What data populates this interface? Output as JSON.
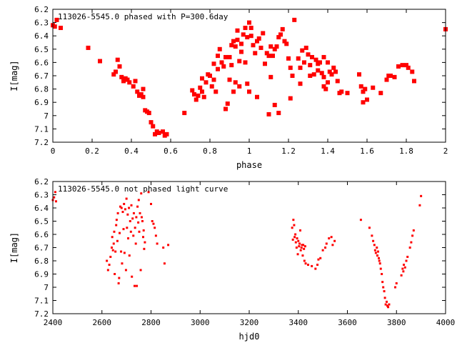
{
  "chart_data": [
    {
      "type": "scatter",
      "title": "113026-5545.0 phased with P=300.6day",
      "xlabel": "phase",
      "ylabel": "I[mag]",
      "xlim": [
        0,
        2
      ],
      "ylim": [
        7.2,
        6.2
      ],
      "y_inverted": true,
      "x_ticks": [
        0,
        0.2,
        0.4,
        0.6,
        0.8,
        1,
        1.2,
        1.4,
        1.6,
        1.8,
        2
      ],
      "x_tick_labels": [
        "0",
        "0.2",
        "0.4",
        "0.6",
        "0.8",
        "1",
        "1.2",
        "1.4",
        "1.6",
        "1.8",
        "2"
      ],
      "y_ticks": [
        6.2,
        6.3,
        6.4,
        6.5,
        6.6,
        6.7,
        6.8,
        6.9,
        7.0,
        7.1,
        7.2
      ],
      "y_tick_labels": [
        "6.2",
        "6.3",
        "6.4",
        "6.5",
        "6.6",
        "6.7",
        "6.8",
        "6.9",
        "7",
        "7.1",
        "7.2"
      ],
      "grid": false,
      "marker_color": "#ff0000",
      "points": [
        [
          0.0,
          6.32
        ],
        [
          0.01,
          6.33
        ],
        [
          0.02,
          6.28
        ],
        [
          0.04,
          6.34
        ],
        [
          0.18,
          6.49
        ],
        [
          0.24,
          6.59
        ],
        [
          0.31,
          6.69
        ],
        [
          0.32,
          6.67
        ],
        [
          0.33,
          6.58
        ],
        [
          0.34,
          6.63
        ],
        [
          0.35,
          6.71
        ],
        [
          0.36,
          6.74
        ],
        [
          0.37,
          6.72
        ],
        [
          0.38,
          6.73
        ],
        [
          0.39,
          6.75
        ],
        [
          0.41,
          6.78
        ],
        [
          0.42,
          6.74
        ],
        [
          0.43,
          6.82
        ],
        [
          0.44,
          6.85
        ],
        [
          0.45,
          6.84
        ],
        [
          0.46,
          6.8
        ],
        [
          0.46,
          6.86
        ],
        [
          0.47,
          6.96
        ],
        [
          0.48,
          6.97
        ],
        [
          0.49,
          6.98
        ],
        [
          0.5,
          7.05
        ],
        [
          0.51,
          7.08
        ],
        [
          0.52,
          7.14
        ],
        [
          0.53,
          7.12
        ],
        [
          0.54,
          7.13
        ],
        [
          0.56,
          7.12
        ],
        [
          0.57,
          7.15
        ],
        [
          0.58,
          7.14
        ],
        [
          0.67,
          6.98
        ],
        [
          0.71,
          6.81
        ],
        [
          0.72,
          6.84
        ],
        [
          0.73,
          6.88
        ],
        [
          0.74,
          6.85
        ],
        [
          0.75,
          6.79
        ],
        [
          0.76,
          6.82
        ],
        [
          0.76,
          6.72
        ],
        [
          0.77,
          6.86
        ],
        [
          0.78,
          6.75
        ],
        [
          0.79,
          6.69
        ],
        [
          0.8,
          6.7
        ],
        [
          0.81,
          6.78
        ],
        [
          0.82,
          6.73
        ],
        [
          0.82,
          6.61
        ],
        [
          0.83,
          6.82
        ],
        [
          0.84,
          6.55
        ],
        [
          0.84,
          6.65
        ],
        [
          0.85,
          6.5
        ],
        [
          0.86,
          6.6
        ],
        [
          0.87,
          6.63
        ],
        [
          0.88,
          6.56
        ],
        [
          0.88,
          6.95
        ],
        [
          0.89,
          6.91
        ],
        [
          0.9,
          6.73
        ],
        [
          0.9,
          6.56
        ],
        [
          0.91,
          6.62
        ],
        [
          0.91,
          6.47
        ],
        [
          0.92,
          6.44
        ],
        [
          0.92,
          6.82
        ],
        [
          0.93,
          6.75
        ],
        [
          0.93,
          6.48
        ],
        [
          0.94,
          6.43
        ],
        [
          0.94,
          6.36
        ],
        [
          0.95,
          6.59
        ],
        [
          0.95,
          6.78
        ],
        [
          0.96,
          6.46
        ],
        [
          0.96,
          6.52
        ],
        [
          0.97,
          6.39
        ],
        [
          0.98,
          6.34
        ],
        [
          0.98,
          6.6
        ],
        [
          0.99,
          6.41
        ],
        [
          0.99,
          6.76
        ],
        [
          1.0,
          6.3
        ],
        [
          1.0,
          6.82
        ],
        [
          1.01,
          6.34
        ],
        [
          1.01,
          6.4
        ],
        [
          1.02,
          6.47
        ],
        [
          1.03,
          6.53
        ],
        [
          1.04,
          6.44
        ],
        [
          1.04,
          6.86
        ],
        [
          1.05,
          6.42
        ],
        [
          1.06,
          6.49
        ],
        [
          1.07,
          6.38
        ],
        [
          1.08,
          6.61
        ],
        [
          1.09,
          6.53
        ],
        [
          1.1,
          6.55
        ],
        [
          1.1,
          6.99
        ],
        [
          1.11,
          6.48
        ],
        [
          1.11,
          6.71
        ],
        [
          1.12,
          6.55
        ],
        [
          1.13,
          6.5
        ],
        [
          1.13,
          6.92
        ],
        [
          1.14,
          6.48
        ],
        [
          1.15,
          6.41
        ],
        [
          1.15,
          6.98
        ],
        [
          1.16,
          6.39
        ],
        [
          1.17,
          6.35
        ],
        [
          1.18,
          6.44
        ],
        [
          1.19,
          6.46
        ],
        [
          1.2,
          6.57
        ],
        [
          1.21,
          6.64
        ],
        [
          1.21,
          6.87
        ],
        [
          1.22,
          6.7
        ],
        [
          1.23,
          6.28
        ],
        [
          1.25,
          6.57
        ],
        [
          1.26,
          6.64
        ],
        [
          1.26,
          6.76
        ],
        [
          1.27,
          6.51
        ],
        [
          1.28,
          6.6
        ],
        [
          1.29,
          6.49
        ],
        [
          1.3,
          6.54
        ],
        [
          1.31,
          6.62
        ],
        [
          1.31,
          6.7
        ],
        [
          1.32,
          6.56
        ],
        [
          1.33,
          6.69
        ],
        [
          1.34,
          6.58
        ],
        [
          1.35,
          6.61
        ],
        [
          1.35,
          6.66
        ],
        [
          1.36,
          6.6
        ],
        [
          1.37,
          6.68
        ],
        [
          1.38,
          6.56
        ],
        [
          1.38,
          6.71
        ],
        [
          1.38,
          6.78
        ],
        [
          1.39,
          6.8
        ],
        [
          1.4,
          6.6
        ],
        [
          1.4,
          6.75
        ],
        [
          1.41,
          6.67
        ],
        [
          1.42,
          6.69
        ],
        [
          1.43,
          6.64
        ],
        [
          1.44,
          6.67
        ],
        [
          1.45,
          6.74
        ],
        [
          1.46,
          6.83
        ],
        [
          1.47,
          6.82
        ],
        [
          1.5,
          6.83
        ],
        [
          1.56,
          6.69
        ],
        [
          1.57,
          6.78
        ],
        [
          1.58,
          6.82
        ],
        [
          1.58,
          6.9
        ],
        [
          1.59,
          6.8
        ],
        [
          1.6,
          6.88
        ],
        [
          1.63,
          6.79
        ],
        [
          1.67,
          6.83
        ],
        [
          1.7,
          6.73
        ],
        [
          1.71,
          6.7
        ],
        [
          1.72,
          6.7
        ],
        [
          1.74,
          6.71
        ],
        [
          1.76,
          6.63
        ],
        [
          1.78,
          6.62
        ],
        [
          1.8,
          6.62
        ],
        [
          1.81,
          6.64
        ],
        [
          1.83,
          6.67
        ],
        [
          1.84,
          6.74
        ],
        [
          2.0,
          6.35
        ]
      ]
    },
    {
      "type": "scatter",
      "title": "113026-5545.0 not phased light curve",
      "xlabel": "hjd0",
      "ylabel": "I[mag]",
      "xlim": [
        2400,
        4000
      ],
      "ylim": [
        7.2,
        6.2
      ],
      "y_inverted": true,
      "x_ticks": [
        2400,
        2600,
        2800,
        3000,
        3200,
        3400,
        3600,
        3800,
        4000
      ],
      "x_tick_labels": [
        "2400",
        "2600",
        "2800",
        "3000",
        "3200",
        "3400",
        "3600",
        "3800",
        "4000"
      ],
      "y_ticks": [
        6.2,
        6.3,
        6.4,
        6.5,
        6.6,
        6.7,
        6.8,
        6.9,
        7.0,
        7.1,
        7.2
      ],
      "y_tick_labels": [
        "6.2",
        "6.3",
        "6.4",
        "6.5",
        "6.6",
        "6.7",
        "6.8",
        "6.9",
        "7",
        "7.1",
        "7.2"
      ],
      "grid": false,
      "marker_color": "#ff0000",
      "points": [
        [
          2400,
          6.34
        ],
        [
          2405,
          6.32
        ],
        [
          2410,
          6.28
        ],
        [
          2413,
          6.35
        ],
        [
          2620,
          6.8
        ],
        [
          2625,
          6.87
        ],
        [
          2630,
          6.83
        ],
        [
          2635,
          6.77
        ],
        [
          2640,
          6.7
        ],
        [
          2642,
          6.62
        ],
        [
          2645,
          6.72
        ],
        [
          2648,
          6.67
        ],
        [
          2650,
          6.58
        ],
        [
          2652,
          6.9
        ],
        [
          2655,
          6.73
        ],
        [
          2658,
          6.53
        ],
        [
          2660,
          6.49
        ],
        [
          2663,
          6.65
        ],
        [
          2665,
          6.44
        ],
        [
          2668,
          6.97
        ],
        [
          2670,
          6.93
        ],
        [
          2672,
          6.59
        ],
        [
          2675,
          6.39
        ],
        [
          2678,
          6.73
        ],
        [
          2680,
          6.4
        ],
        [
          2682,
          6.82
        ],
        [
          2685,
          6.43
        ],
        [
          2688,
          6.56
        ],
        [
          2690,
          6.37
        ],
        [
          2692,
          6.74
        ],
        [
          2695,
          6.41
        ],
        [
          2698,
          6.87
        ],
        [
          2700,
          6.33
        ],
        [
          2702,
          6.55
        ],
        [
          2705,
          6.45
        ],
        [
          2707,
          6.63
        ],
        [
          2710,
          6.4
        ],
        [
          2712,
          6.76
        ],
        [
          2715,
          6.5
        ],
        [
          2718,
          6.58
        ],
        [
          2720,
          6.38
        ],
        [
          2722,
          6.92
        ],
        [
          2725,
          6.48
        ],
        [
          2728,
          6.61
        ],
        [
          2730,
          6.44
        ],
        [
          2733,
          6.99
        ],
        [
          2735,
          6.55
        ],
        [
          2738,
          6.67
        ],
        [
          2740,
          6.47
        ],
        [
          2742,
          6.99
        ],
        [
          2745,
          6.39
        ],
        [
          2748,
          6.51
        ],
        [
          2750,
          6.34
        ],
        [
          2752,
          6.58
        ],
        [
          2755,
          6.44
        ],
        [
          2758,
          6.87
        ],
        [
          2760,
          6.29
        ],
        [
          2762,
          6.47
        ],
        [
          2765,
          6.5
        ],
        [
          2768,
          6.62
        ],
        [
          2770,
          6.57
        ],
        [
          2772,
          6.71
        ],
        [
          2775,
          6.66
        ],
        [
          2790,
          6.28
        ],
        [
          2800,
          6.37
        ],
        [
          2805,
          6.5
        ],
        [
          2810,
          6.52
        ],
        [
          2815,
          6.55
        ],
        [
          2820,
          6.61
        ],
        [
          2825,
          6.67
        ],
        [
          2850,
          6.7
        ],
        [
          2855,
          6.82
        ],
        [
          2870,
          6.68
        ],
        [
          3375,
          6.55
        ],
        [
          3378,
          6.64
        ],
        [
          3380,
          6.49
        ],
        [
          3383,
          6.53
        ],
        [
          3385,
          6.62
        ],
        [
          3388,
          6.6
        ],
        [
          3390,
          6.66
        ],
        [
          3393,
          6.7
        ],
        [
          3395,
          6.63
        ],
        [
          3398,
          6.75
        ],
        [
          3400,
          6.65
        ],
        [
          3403,
          6.69
        ],
        [
          3405,
          6.67
        ],
        [
          3408,
          6.57
        ],
        [
          3410,
          6.72
        ],
        [
          3413,
          6.7
        ],
        [
          3415,
          6.68
        ],
        [
          3418,
          6.76
        ],
        [
          3420,
          6.68
        ],
        [
          3423,
          6.71
        ],
        [
          3425,
          6.8
        ],
        [
          3428,
          6.69
        ],
        [
          3430,
          6.82
        ],
        [
          3440,
          6.83
        ],
        [
          3455,
          6.84
        ],
        [
          3470,
          6.86
        ],
        [
          3478,
          6.83
        ],
        [
          3482,
          6.79
        ],
        [
          3490,
          6.78
        ],
        [
          3500,
          6.72
        ],
        [
          3510,
          6.7
        ],
        [
          3515,
          6.67
        ],
        [
          3525,
          6.63
        ],
        [
          3535,
          6.62
        ],
        [
          3540,
          6.68
        ],
        [
          3548,
          6.65
        ],
        [
          3655,
          6.49
        ],
        [
          3690,
          6.55
        ],
        [
          3700,
          6.61
        ],
        [
          3705,
          6.65
        ],
        [
          3710,
          6.68
        ],
        [
          3713,
          6.72
        ],
        [
          3716,
          6.74
        ],
        [
          3720,
          6.7
        ],
        [
          3722,
          6.76
        ],
        [
          3725,
          6.73
        ],
        [
          3728,
          6.78
        ],
        [
          3730,
          6.8
        ],
        [
          3733,
          6.82
        ],
        [
          3736,
          6.86
        ],
        [
          3740,
          6.9
        ],
        [
          3743,
          6.96
        ],
        [
          3746,
          7.0
        ],
        [
          3750,
          7.03
        ],
        [
          3753,
          7.08
        ],
        [
          3756,
          7.13
        ],
        [
          3760,
          7.11
        ],
        [
          3763,
          7.14
        ],
        [
          3766,
          7.15
        ],
        [
          3770,
          7.13
        ],
        [
          3795,
          7.0
        ],
        [
          3800,
          6.97
        ],
        [
          3820,
          6.91
        ],
        [
          3825,
          6.86
        ],
        [
          3828,
          6.88
        ],
        [
          3830,
          6.83
        ],
        [
          3835,
          6.85
        ],
        [
          3840,
          6.8
        ],
        [
          3845,
          6.77
        ],
        [
          3855,
          6.7
        ],
        [
          3860,
          6.66
        ],
        [
          3865,
          6.61
        ],
        [
          3870,
          6.57
        ],
        [
          3895,
          6.38
        ],
        [
          3900,
          6.31
        ]
      ]
    }
  ]
}
